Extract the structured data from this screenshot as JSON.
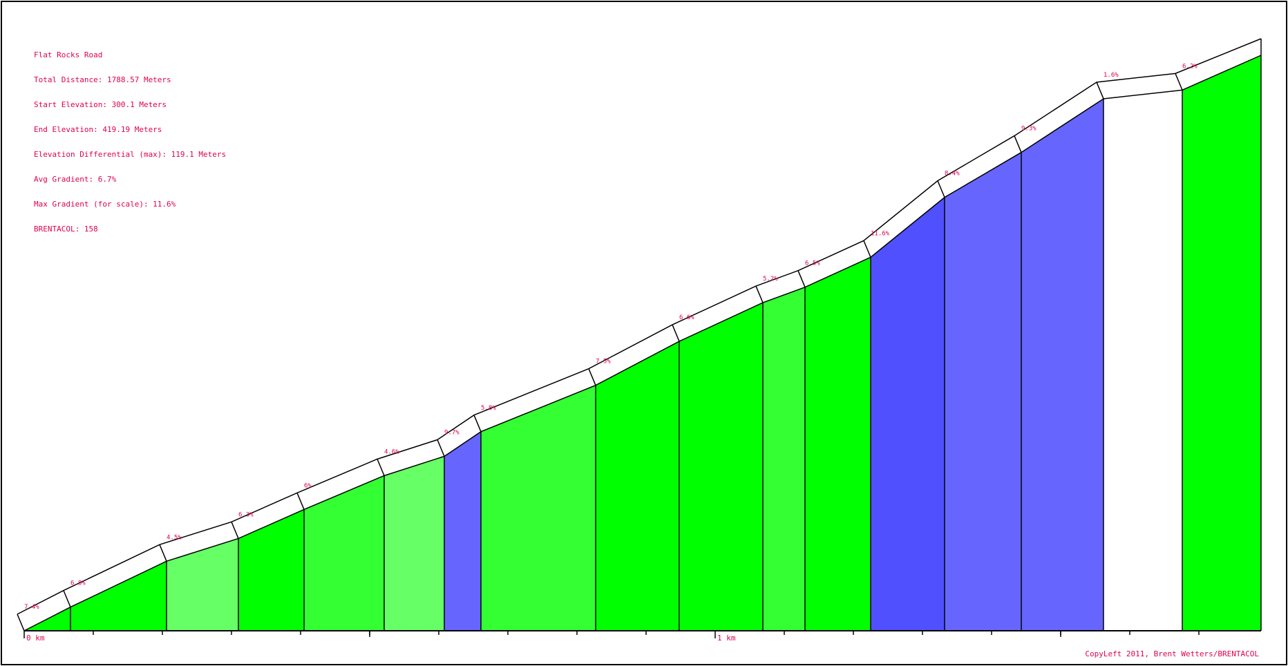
{
  "info": {
    "title": "Flat Rocks Road",
    "total_distance": "Total Distance: 1788.57 Meters",
    "start_elevation": "Start Elevation: 300.1 Meters",
    "end_elevation": "End Elevation: 419.19 Meters",
    "elevation_differential": "Elevation Differential (max): 119.1 Meters",
    "avg_gradient": "Avg Gradient: 6.7%",
    "max_gradient": "Max Gradient (for scale): 11.6%",
    "brentacol": "BRENTACOL: 158"
  },
  "copyright": "CopyLeft 2011, Brent Wetters/BRENTACOL",
  "colors": {
    "label": "#e0004d",
    "gradient_bands": {
      "lt_2": "#ffffff",
      "4_5": "#66ff66",
      "5_6": "#33ff33",
      "6_8": "#00ff00",
      "9_10": "#6666ff",
      "gt_11": "#5050ff"
    }
  },
  "chart_data": {
    "type": "area",
    "x_unit": "km",
    "y_unit": "m",
    "x_range": [
      0,
      1.79
    ],
    "y_range": [
      300.1,
      419.2
    ],
    "x_tick_labels": [
      {
        "x": 0,
        "label": "0 km"
      },
      {
        "x": 1,
        "label": "1 km"
      }
    ],
    "minor_tick_step_km": 0.1,
    "segments": [
      {
        "start_km": 0.0,
        "end_km": 0.067,
        "start_elev": 300.1,
        "end_elev": 305.0,
        "gradient_label": "7.4%",
        "color": "#00ff00"
      },
      {
        "start_km": 0.067,
        "end_km": 0.206,
        "start_elev": 305.0,
        "end_elev": 314.5,
        "gradient_label": "6.8%",
        "color": "#00ff00"
      },
      {
        "start_km": 0.206,
        "end_km": 0.31,
        "start_elev": 314.5,
        "end_elev": 319.2,
        "gradient_label": "4.5%",
        "color": "#66ff66"
      },
      {
        "start_km": 0.31,
        "end_km": 0.405,
        "start_elev": 319.2,
        "end_elev": 325.2,
        "gradient_label": "6.3%",
        "color": "#00ff00"
      },
      {
        "start_km": 0.405,
        "end_km": 0.521,
        "start_elev": 325.2,
        "end_elev": 332.2,
        "gradient_label": "6%",
        "color": "#33ff33"
      },
      {
        "start_km": 0.521,
        "end_km": 0.608,
        "start_elev": 332.2,
        "end_elev": 336.2,
        "gradient_label": "4.6%",
        "color": "#66ff66"
      },
      {
        "start_km": 0.608,
        "end_km": 0.661,
        "start_elev": 336.2,
        "end_elev": 341.3,
        "gradient_label": "9.7%",
        "color": "#6666ff"
      },
      {
        "start_km": 0.661,
        "end_km": 0.827,
        "start_elev": 341.3,
        "end_elev": 350.9,
        "gradient_label": "5.8%",
        "color": "#33ff33"
      },
      {
        "start_km": 0.827,
        "end_km": 0.948,
        "start_elev": 350.9,
        "end_elev": 360.0,
        "gradient_label": "7.5%",
        "color": "#00ff00"
      },
      {
        "start_km": 0.948,
        "end_km": 1.069,
        "start_elev": 360.0,
        "end_elev": 368.0,
        "gradient_label": "6.6%",
        "color": "#00ff00"
      },
      {
        "start_km": 1.069,
        "end_km": 1.13,
        "start_elev": 368.0,
        "end_elev": 371.2,
        "gradient_label": "5.2%",
        "color": "#33ff33"
      },
      {
        "start_km": 1.13,
        "end_km": 1.225,
        "start_elev": 371.2,
        "end_elev": 377.4,
        "gradient_label": "6.5%",
        "color": "#00ff00"
      },
      {
        "start_km": 1.225,
        "end_km": 1.332,
        "start_elev": 377.4,
        "end_elev": 389.8,
        "gradient_label": "11.6%",
        "color": "#5050ff"
      },
      {
        "start_km": 1.332,
        "end_km": 1.443,
        "start_elev": 389.8,
        "end_elev": 399.1,
        "gradient_label": "8.4%",
        "color": "#6666ff"
      },
      {
        "start_km": 1.443,
        "end_km": 1.562,
        "start_elev": 399.1,
        "end_elev": 410.2,
        "gradient_label": "9.3%",
        "color": "#6666ff"
      },
      {
        "start_km": 1.562,
        "end_km": 1.676,
        "start_elev": 410.2,
        "end_elev": 412.0,
        "gradient_label": "1.6%",
        "color": "#ffffff"
      },
      {
        "start_km": 1.676,
        "end_km": 1.79,
        "start_elev": 412.0,
        "end_elev": 419.2,
        "gradient_label": "6.2%",
        "color": "#00ff00"
      }
    ]
  }
}
